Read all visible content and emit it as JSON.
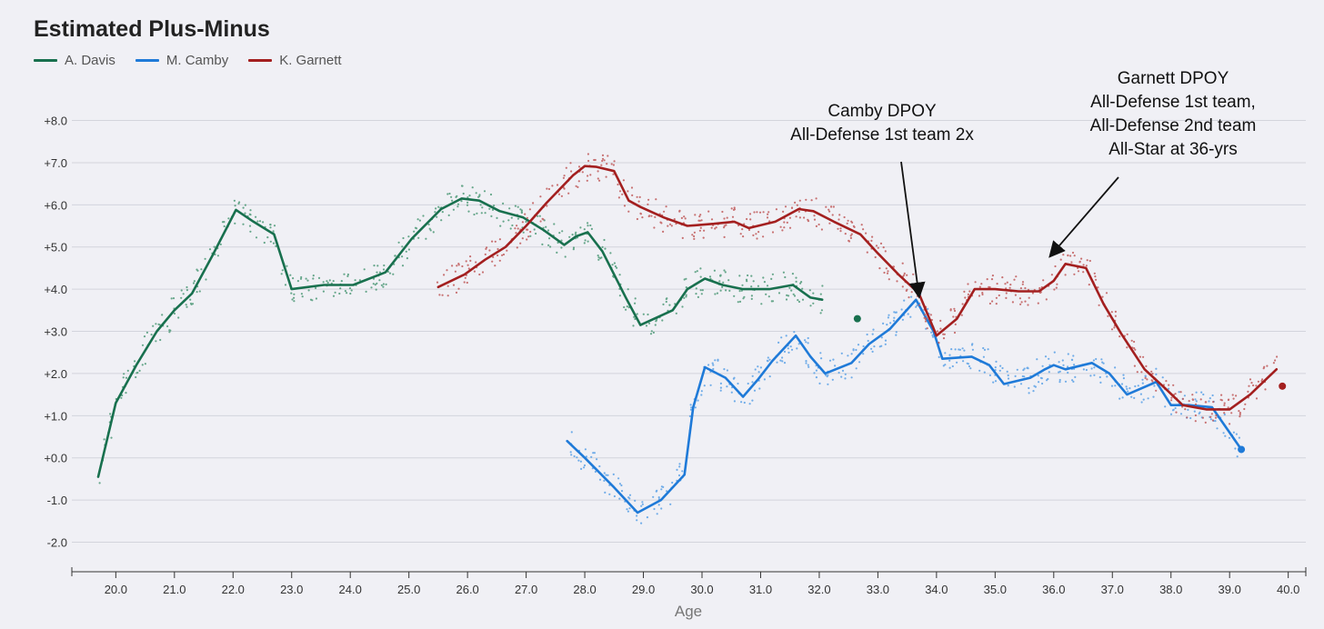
{
  "chart_data": {
    "type": "line",
    "title": "Estimated Plus-Minus",
    "xlabel": "Age",
    "ylabel": "",
    "xlim": [
      19.25,
      40.3
    ],
    "ylim": [
      -2.7,
      8.4
    ],
    "x_ticks": [
      "20.0",
      "21.0",
      "22.0",
      "23.0",
      "24.0",
      "25.0",
      "26.0",
      "27.0",
      "28.0",
      "29.0",
      "30.0",
      "31.0",
      "32.0",
      "33.0",
      "34.0",
      "35.0",
      "36.0",
      "37.0",
      "38.0",
      "39.0",
      "40.0"
    ],
    "y_ticks": [
      "+8.0",
      "+7.0",
      "+6.0",
      "+5.0",
      "+4.0",
      "+3.0",
      "+2.0",
      "+1.0",
      "+0.0",
      "-1.0",
      "-2.0"
    ],
    "grid": true,
    "legend": "top-left",
    "series": [
      {
        "name": "A. Davis",
        "color": "#18704e",
        "x": [
          19.7,
          20.0,
          20.35,
          20.7,
          21.0,
          21.3,
          21.65,
          22.05,
          22.35,
          22.7,
          23.0,
          23.55,
          24.05,
          24.6,
          25.05,
          25.55,
          25.9,
          26.2,
          26.55,
          26.95,
          27.3,
          27.65,
          27.85,
          28.05,
          28.3,
          28.7,
          28.95,
          29.5,
          29.75,
          30.05,
          30.35,
          30.7,
          31.15,
          31.55,
          31.85,
          32.05
        ],
        "y": [
          -0.45,
          1.3,
          2.2,
          3.0,
          3.5,
          3.9,
          4.8,
          5.88,
          5.6,
          5.3,
          4.0,
          4.1,
          4.1,
          4.4,
          5.2,
          5.9,
          6.15,
          6.1,
          5.85,
          5.7,
          5.4,
          5.05,
          5.25,
          5.35,
          4.9,
          3.8,
          3.15,
          3.5,
          4.0,
          4.25,
          4.1,
          4.0,
          4.0,
          4.1,
          3.8,
          3.75
        ],
        "end_point": [
          32.65,
          3.3
        ]
      },
      {
        "name": "M. Camby",
        "color": "#1f7ad8",
        "x": [
          27.7,
          28.0,
          28.5,
          28.9,
          29.3,
          29.7,
          29.85,
          30.05,
          30.4,
          30.7,
          30.95,
          31.2,
          31.6,
          31.85,
          32.1,
          32.55,
          32.85,
          33.2,
          33.65,
          33.95,
          34.1,
          34.6,
          34.9,
          35.15,
          35.6,
          35.85,
          36.0,
          36.2,
          36.65,
          36.95,
          37.25,
          37.75,
          38.0,
          38.3,
          38.7,
          39.0,
          39.2
        ],
        "y": [
          0.4,
          0.0,
          -0.7,
          -1.3,
          -1.0,
          -0.4,
          1.2,
          2.15,
          1.9,
          1.45,
          1.85,
          2.3,
          2.9,
          2.4,
          2.0,
          2.25,
          2.7,
          3.05,
          3.75,
          3.0,
          2.35,
          2.4,
          2.2,
          1.75,
          1.9,
          2.1,
          2.2,
          2.1,
          2.25,
          2.0,
          1.5,
          1.8,
          1.25,
          1.25,
          1.2,
          0.6,
          0.2
        ]
      },
      {
        "name": "K. Garnett",
        "color": "#a31f1f",
        "x": [
          25.5,
          25.95,
          26.3,
          26.65,
          27.0,
          27.35,
          27.8,
          28.0,
          28.2,
          28.5,
          28.75,
          28.95,
          29.35,
          29.75,
          30.2,
          30.55,
          30.8,
          31.25,
          31.65,
          31.9,
          32.25,
          32.7,
          33.0,
          33.35,
          33.7,
          34.0,
          34.35,
          34.65,
          35.0,
          35.4,
          35.75,
          36.0,
          36.2,
          36.55,
          36.85,
          37.15,
          37.55,
          37.9,
          38.2,
          38.6,
          39.0,
          39.35,
          39.8
        ],
        "y": [
          4.05,
          4.35,
          4.7,
          5.0,
          5.5,
          6.05,
          6.7,
          6.92,
          6.9,
          6.8,
          6.1,
          5.95,
          5.7,
          5.5,
          5.55,
          5.6,
          5.45,
          5.6,
          5.9,
          5.85,
          5.6,
          5.3,
          4.85,
          4.35,
          3.9,
          2.9,
          3.3,
          4.0,
          4.0,
          3.95,
          3.95,
          4.2,
          4.6,
          4.5,
          3.65,
          2.95,
          2.1,
          1.65,
          1.25,
          1.15,
          1.15,
          1.5,
          2.1
        ],
        "end_point": [
          39.9,
          1.7
        ]
      }
    ],
    "annotations": [
      {
        "lines": [
          "Camby DPOY",
          "All-Defense 1st team 2x"
        ],
        "points_to": [
          33.7,
          3.85
        ]
      },
      {
        "lines": [
          "Garnett DPOY",
          "All-Defense 1st team,",
          "All-Defense 2nd team",
          "All-Star at 36-yrs"
        ],
        "points_to": [
          35.95,
          4.8
        ]
      }
    ]
  }
}
